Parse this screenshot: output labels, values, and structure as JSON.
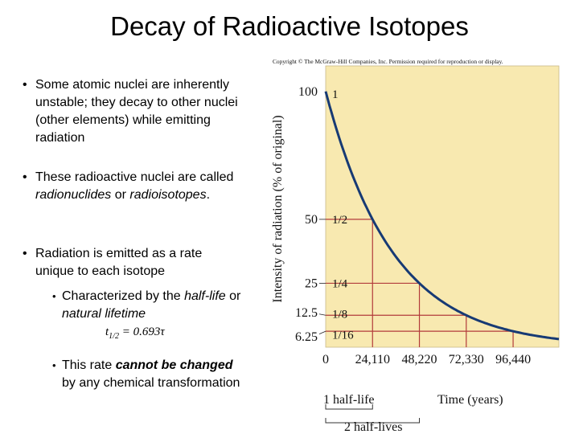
{
  "slide": {
    "title": "Decay of Radioactive Isotopes",
    "bullets": [
      {
        "text": "Some atomic nuclei are inherently unstable; they decay to other nuclei (other elements) while emitting radiation"
      },
      {
        "pre": "These radioactive nuclei are called ",
        "em1": "radionuclides",
        "mid": " or ",
        "em2": "radioisotopes",
        "post": "."
      },
      {
        "text": "Radiation is emitted as a rate unique to each isotope"
      }
    ],
    "sub_bullets": [
      {
        "pre": "Characterized by the ",
        "em1": "half-life",
        "mid": " or ",
        "em2": "natural lifetime"
      },
      {
        "pre": "This rate ",
        "strong": "cannot be changed",
        "post": " by any chemical transformation"
      }
    ],
    "formula": {
      "lhs": "t",
      "sub": "1/2",
      "rhs": " = 0.693τ"
    }
  },
  "chart_data": {
    "type": "line",
    "copyright": "Copyright © The McGraw-Hill Companies, Inc. Permission required for reproduction or display.",
    "ylabel": "Intensity of radiation (% of original)",
    "xlabel": "Time (years)",
    "x_ticks": [
      "0",
      "24,110",
      "48,220",
      "72,330",
      "96,440"
    ],
    "y_ticks": [
      "100",
      "50",
      "25",
      "12.5",
      "6.25"
    ],
    "fraction_labels": [
      "1",
      "1/2",
      "1/4",
      "1/8",
      "1/16"
    ],
    "half_life_years": 24110,
    "xlim": [
      0,
      120000
    ],
    "ylim": [
      0,
      110
    ],
    "series": [
      {
        "x": [
          0,
          24110,
          48220,
          72330,
          96440
        ],
        "values": [
          100,
          50,
          25,
          12.5,
          6.25
        ]
      }
    ],
    "bracket_labels": [
      "1 half-life",
      "2 half-lives"
    ],
    "colors": {
      "background": "#f8e9b0",
      "curve": "#173a74",
      "guides": "#b23b3b"
    }
  }
}
